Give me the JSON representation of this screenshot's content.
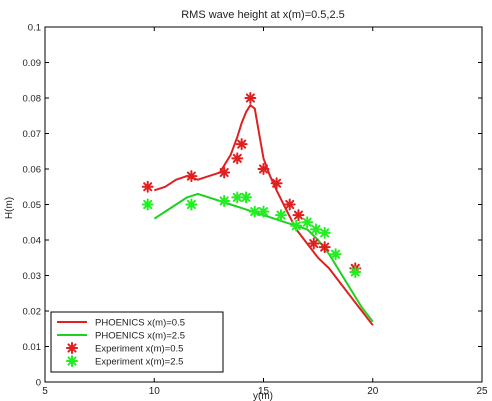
{
  "chart_data": {
    "type": "line",
    "title": "RMS wave height at x(m)=0.5,2.5",
    "xlabel": "y(m)",
    "ylabel": "H(m)",
    "xlim": [
      5,
      25
    ],
    "ylim": [
      0,
      0.1
    ],
    "xticks": [
      5,
      10,
      15,
      20,
      25
    ],
    "yticks": [
      0,
      0.01,
      0.02,
      0.03,
      0.04,
      0.05,
      0.06,
      0.07,
      0.08,
      0.09,
      0.1
    ],
    "grid": false,
    "legend_position": "bottom-left",
    "series": [
      {
        "name": "PHOENICS x(m)=0.5",
        "kind": "line",
        "color": "#e02020",
        "x": [
          10.0,
          10.5,
          11.0,
          11.5,
          12.0,
          12.5,
          13.0,
          13.5,
          13.8,
          14.0,
          14.2,
          14.4,
          14.6,
          14.8,
          15.0,
          15.3,
          15.6,
          16.0,
          16.5,
          17.0,
          17.5,
          18.0,
          18.5,
          19.0,
          19.5,
          20.0
        ],
        "y": [
          0.054,
          0.055,
          0.057,
          0.058,
          0.057,
          0.058,
          0.059,
          0.064,
          0.069,
          0.073,
          0.076,
          0.078,
          0.077,
          0.07,
          0.063,
          0.058,
          0.054,
          0.049,
          0.043,
          0.039,
          0.035,
          0.032,
          0.028,
          0.024,
          0.02,
          0.016
        ]
      },
      {
        "name": "PHOENICS x(m)=2.5",
        "kind": "line",
        "color": "#20d020",
        "x": [
          10.0,
          10.5,
          11.0,
          11.5,
          12.0,
          12.5,
          13.0,
          13.5,
          14.0,
          14.5,
          15.0,
          15.5,
          16.0,
          16.5,
          17.0,
          17.5,
          18.0,
          18.5,
          19.0,
          19.5,
          20.0
        ],
        "y": [
          0.046,
          0.048,
          0.05,
          0.052,
          0.053,
          0.052,
          0.051,
          0.05,
          0.049,
          0.048,
          0.047,
          0.046,
          0.045,
          0.044,
          0.043,
          0.04,
          0.036,
          0.031,
          0.026,
          0.021,
          0.017
        ]
      },
      {
        "name": "Experiment x(m)=0.5",
        "kind": "marker",
        "color": "#e02020",
        "x": [
          9.7,
          11.7,
          13.2,
          13.8,
          14.0,
          14.4,
          15.0,
          15.6,
          16.2,
          16.6,
          17.3,
          17.8,
          19.2
        ],
        "y": [
          0.055,
          0.058,
          0.059,
          0.063,
          0.067,
          0.08,
          0.06,
          0.056,
          0.05,
          0.047,
          0.039,
          0.038,
          0.032
        ]
      },
      {
        "name": "Experiment x(m)=2.5",
        "kind": "marker",
        "color": "#22ee22",
        "x": [
          9.7,
          11.7,
          13.2,
          13.8,
          14.2,
          14.6,
          15.0,
          15.8,
          16.5,
          17.0,
          17.4,
          17.8,
          18.3,
          19.2
        ],
        "y": [
          0.05,
          0.05,
          0.051,
          0.052,
          0.052,
          0.048,
          0.048,
          0.047,
          0.044,
          0.045,
          0.043,
          0.042,
          0.036,
          0.031
        ]
      }
    ]
  }
}
